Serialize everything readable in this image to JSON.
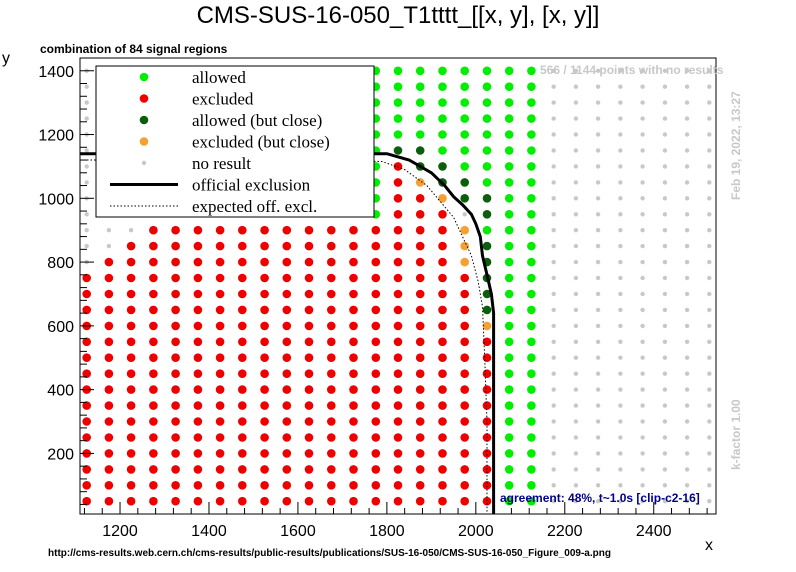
{
  "title": "CMS-SUS-16-050_T1tttt_[[x, y], [x, y]]",
  "subtitle": "combination of 84 signal regions",
  "xlabel": "x",
  "ylabel": "y",
  "no_results_note": "566 / 1144 points with no results",
  "timestamp": "Feb 19, 2022, 13:27",
  "kfactor": "k-factor 1.00",
  "agreement": "agreement: 48%, t~1.0s [clip-c2-16]",
  "source_url": "http://cms-results.web.cern.ch/cms-results/public-results/publications/SUS-16-050/CMS-SUS-16-050_Figure_009-a.png",
  "colors": {
    "allowed": "#00ee00",
    "excluded": "#ee0000",
    "allowed_close": "#0b5e0b",
    "excluded_close": "#f5a033",
    "no_result": "#c8c8c8",
    "agreement_text": "#00008b",
    "faint_text": "#c8c8c8"
  },
  "legend": [
    {
      "label": "allowed",
      "marker": "allowed"
    },
    {
      "label": "excluded",
      "marker": "excluded"
    },
    {
      "label": "allowed (but close)",
      "marker": "allowed_close"
    },
    {
      "label": "excluded (but close)",
      "marker": "excluded_close"
    },
    {
      "label": "no result",
      "marker": "no_result"
    },
    {
      "label": "official exclusion",
      "marker": "line-solid"
    },
    {
      "label": "expected off. excl.",
      "marker": "line-dotted"
    }
  ],
  "chart_data": {
    "type": "scatter",
    "xlim": [
      1110,
      2540
    ],
    "ylim": [
      10,
      1440
    ],
    "xticks": [
      1200,
      1400,
      1600,
      1800,
      2000,
      2200,
      2400
    ],
    "yticks": [
      200,
      400,
      600,
      800,
      1000,
      1200,
      1400
    ],
    "x_grid_start": 1125,
    "x_grid_step": 50,
    "y_grid_start": 50,
    "y_grid_step": 50,
    "grid": false,
    "legend_position": "top-left",
    "excluded_max_y_by_x": {
      "1125": 750,
      "1175": 800,
      "1225": 850,
      "1275": 900,
      "1325": 900,
      "1375": 900,
      "1425": 900,
      "1475": 900,
      "1525": 900,
      "1575": 900,
      "1625": 900,
      "1675": 900,
      "1725": 900,
      "1775": 900
    },
    "green_points": [
      {
        "x": 1775,
        "ymin": 950,
        "ymax": 1400
      },
      {
        "x": 1825,
        "ymin": 1200,
        "ymax": 1400
      },
      {
        "x": 1875,
        "ymin": 1200,
        "ymax": 1400
      },
      {
        "x": 1925,
        "ymin": 1150,
        "ymax": 1400
      },
      {
        "x": 1975,
        "ymin": 1050,
        "ymax": 1400
      },
      {
        "x": 2025,
        "ymin": 900,
        "ymax": 1400
      },
      {
        "x": 2075,
        "ymin": 50,
        "ymax": 1400
      },
      {
        "x": 2125,
        "ymin": 50,
        "ymax": 1400
      }
    ],
    "dark_green_points": [
      [
        1825,
        1150
      ],
      [
        1875,
        1150
      ],
      [
        1875,
        1100
      ],
      [
        1925,
        1100
      ],
      [
        1925,
        1050
      ],
      [
        1975,
        1050
      ],
      [
        1975,
        1000
      ],
      [
        2025,
        1000
      ],
      [
        2025,
        950
      ],
      [
        2025,
        850
      ],
      [
        2025,
        800
      ],
      [
        2025,
        750
      ],
      [
        2025,
        700
      ],
      [
        2025,
        650
      ]
    ],
    "orange_points": [
      [
        1875,
        1050
      ],
      [
        1925,
        1000
      ],
      [
        1975,
        900
      ],
      [
        1975,
        850
      ],
      [
        1975,
        800
      ],
      [
        2025,
        600
      ]
    ],
    "red_columns": [
      {
        "x": 1825,
        "ymin": 50,
        "ymax": 1100
      },
      {
        "x": 1875,
        "ymin": 50,
        "ymax": 1000
      },
      {
        "x": 1925,
        "ymin": 50,
        "ymax": 950
      },
      {
        "x": 1975,
        "ymin": 50,
        "ymax": 750
      },
      {
        "x": 2025,
        "ymin": 50,
        "ymax": 550
      }
    ],
    "official_exclusion": [
      [
        1110,
        1140
      ],
      [
        1300,
        1140
      ],
      [
        1500,
        1140
      ],
      [
        1700,
        1140
      ],
      [
        1800,
        1140
      ],
      [
        1850,
        1120
      ],
      [
        1900,
        1080
      ],
      [
        1930,
        1040
      ],
      [
        1950,
        1005
      ],
      [
        1970,
        980
      ],
      [
        1990,
        950
      ],
      [
        2000,
        920
      ],
      [
        2010,
        880
      ],
      [
        2015,
        820
      ],
      [
        2025,
        760
      ],
      [
        2035,
        700
      ],
      [
        2040,
        640
      ],
      [
        2040,
        400
      ],
      [
        2040,
        10
      ]
    ],
    "expected_exclusion": [
      [
        1110,
        1120
      ],
      [
        1300,
        1120
      ],
      [
        1500,
        1120
      ],
      [
        1700,
        1120
      ],
      [
        1790,
        1115
      ],
      [
        1840,
        1090
      ],
      [
        1890,
        1040
      ],
      [
        1920,
        990
      ],
      [
        1950,
        940
      ],
      [
        1970,
        880
      ],
      [
        1990,
        820
      ],
      [
        2005,
        740
      ],
      [
        2015,
        660
      ],
      [
        2020,
        500
      ],
      [
        2025,
        300
      ],
      [
        2025,
        10
      ]
    ]
  }
}
